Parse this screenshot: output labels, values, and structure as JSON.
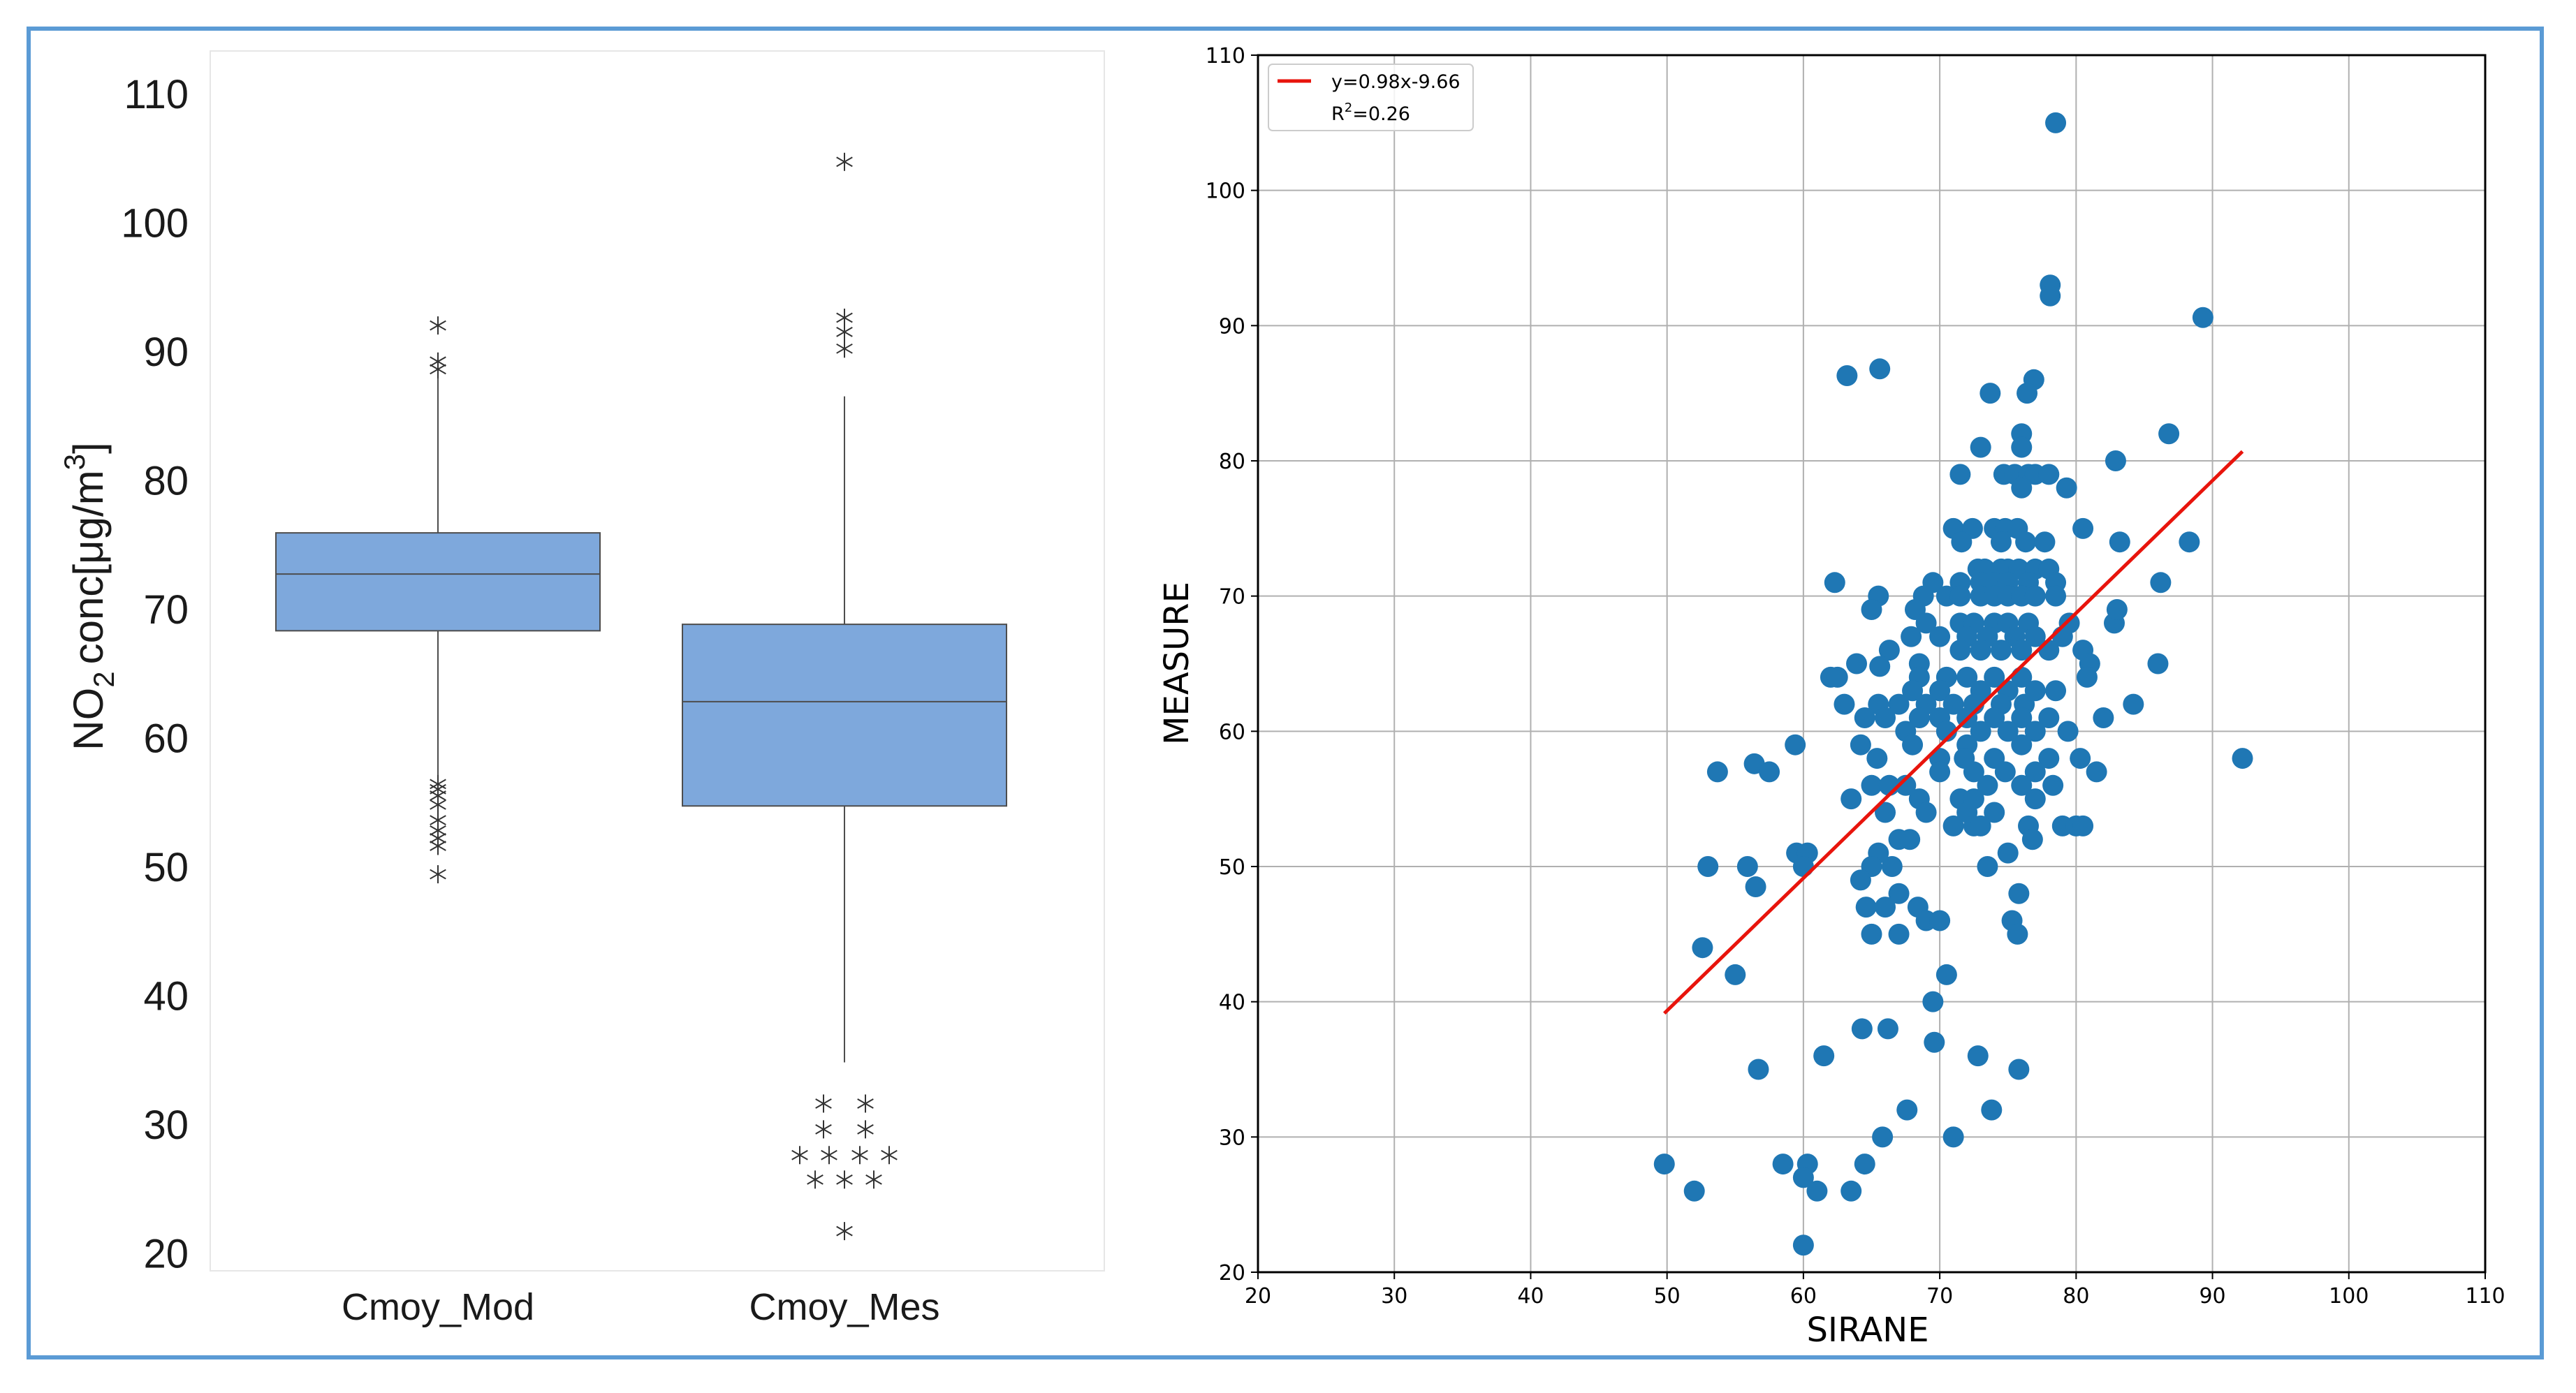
{
  "colors": {
    "frame": "#5b9bd5",
    "box_fill": "#7ea8dc",
    "box_edge": "#4d4d4d",
    "scatter": "#1f77b4",
    "fit_line": "#e8140c",
    "grid": "#b0b0b0"
  },
  "chart_data": [
    {
      "type": "box",
      "ylabel_main": "NO",
      "ylabel_sub": "2",
      "ylabel_rest": "conc[μg/m",
      "ylabel_sup": "3",
      "ylabel_close": "]",
      "ylim": [
        17,
        112
      ],
      "yticks": [
        "110",
        "100",
        "90",
        "80",
        "70",
        "60",
        "50",
        "40",
        "30",
        "20"
      ],
      "categories": [
        "Cmoy_Mod",
        "Cmoy_Mes"
      ],
      "boxes": [
        {
          "name": "Cmoy_Mod",
          "q1": 68.3,
          "median": 72.7,
          "q3": 75.9,
          "whisker_low": 57.0,
          "whisker_high": 88.3,
          "outliers": [
            92.0,
            89.2,
            88.6,
            56.4,
            56.0,
            55.5,
            54.8,
            53.6,
            52.8,
            52.2,
            51.6,
            49.4
          ]
        },
        {
          "name": "Cmoy_Mes",
          "q1": 54.7,
          "median": 62.8,
          "q3": 68.8,
          "whisker_low": 34.8,
          "whisker_high": 86.5,
          "outliers": [
            104.7,
            92.6,
            91.5,
            90.2,
            31.6,
            29.6,
            27.6,
            25.7,
            21.7
          ]
        }
      ]
    },
    {
      "type": "scatter",
      "xlabel": "SIRANE",
      "ylabel": "MEASURE",
      "xlim": [
        20,
        110
      ],
      "ylim": [
        20,
        110
      ],
      "xticks": [
        "20",
        "30",
        "40",
        "50",
        "60",
        "70",
        "80",
        "90",
        "100",
        "110"
      ],
      "yticks": [
        "20",
        "30",
        "40",
        "50",
        "60",
        "70",
        "80",
        "90",
        "100",
        "110"
      ],
      "grid": true,
      "legend": {
        "position": "top-left",
        "line1": "y=0.98x-9.66",
        "line2_prefix": "R",
        "line2_sup": "2",
        "line2_rest": "=0.26"
      },
      "fit": {
        "slope": 0.98,
        "intercept": -9.66,
        "x_range": [
          49.8,
          92.2
        ]
      },
      "points": [
        [
          78.5,
          105
        ],
        [
          78.1,
          93
        ],
        [
          78.1,
          92.2
        ],
        [
          89.3,
          90.6
        ],
        [
          63.2,
          86.3
        ],
        [
          65.6,
          86.8
        ],
        [
          76.9,
          86
        ],
        [
          76.4,
          85
        ],
        [
          73.7,
          85
        ],
        [
          86.8,
          82
        ],
        [
          76,
          82
        ],
        [
          73,
          81
        ],
        [
          76,
          81
        ],
        [
          82.9,
          80
        ],
        [
          71.5,
          79
        ],
        [
          74.7,
          79
        ],
        [
          75.5,
          79
        ],
        [
          76.5,
          79
        ],
        [
          77,
          79
        ],
        [
          78,
          79
        ],
        [
          76,
          78
        ],
        [
          79.3,
          78
        ],
        [
          71,
          75
        ],
        [
          72.4,
          75
        ],
        [
          74,
          75
        ],
        [
          74.8,
          75
        ],
        [
          75.7,
          75
        ],
        [
          80.5,
          75
        ],
        [
          71.6,
          74
        ],
        [
          74.5,
          74
        ],
        [
          76.3,
          74
        ],
        [
          77.7,
          74
        ],
        [
          83.2,
          74
        ],
        [
          88.3,
          74
        ],
        [
          72.8,
          72
        ],
        [
          73.3,
          72
        ],
        [
          74.5,
          72
        ],
        [
          75,
          72
        ],
        [
          75.8,
          72
        ],
        [
          77,
          72
        ],
        [
          78,
          72
        ],
        [
          71.5,
          71
        ],
        [
          73,
          71
        ],
        [
          74,
          71
        ],
        [
          75,
          71
        ],
        [
          76.5,
          71
        ],
        [
          78.5,
          71
        ],
        [
          62.3,
          71
        ],
        [
          69.5,
          71
        ],
        [
          86.2,
          71
        ],
        [
          65.5,
          70
        ],
        [
          68.8,
          70
        ],
        [
          70.5,
          70
        ],
        [
          71.5,
          70
        ],
        [
          73,
          70
        ],
        [
          74,
          70
        ],
        [
          75,
          70
        ],
        [
          76,
          70
        ],
        [
          77,
          70
        ],
        [
          78.5,
          70
        ],
        [
          65,
          69
        ],
        [
          68.2,
          69
        ],
        [
          69,
          68
        ],
        [
          71.5,
          68
        ],
        [
          72.5,
          68
        ],
        [
          74,
          68
        ],
        [
          75,
          68
        ],
        [
          76.5,
          68
        ],
        [
          79.5,
          68
        ],
        [
          82.8,
          68
        ],
        [
          83,
          69
        ],
        [
          67.9,
          67
        ],
        [
          70,
          67
        ],
        [
          72,
          67
        ],
        [
          73.5,
          67
        ],
        [
          75.5,
          67
        ],
        [
          77,
          67
        ],
        [
          79,
          67
        ],
        [
          66.3,
          66
        ],
        [
          68.5,
          65
        ],
        [
          71.5,
          66
        ],
        [
          73,
          66
        ],
        [
          74.5,
          66
        ],
        [
          76,
          66
        ],
        [
          78,
          66
        ],
        [
          80.5,
          66
        ],
        [
          81,
          65
        ],
        [
          86,
          65
        ],
        [
          63.9,
          65
        ],
        [
          65.6,
          64.8
        ],
        [
          62,
          64
        ],
        [
          62.5,
          64
        ],
        [
          68.5,
          64
        ],
        [
          70.5,
          64
        ],
        [
          72,
          64
        ],
        [
          74,
          64
        ],
        [
          76,
          64
        ],
        [
          80.8,
          64
        ],
        [
          68,
          63
        ],
        [
          70,
          63
        ],
        [
          73,
          63
        ],
        [
          75,
          63
        ],
        [
          77,
          63
        ],
        [
          78.5,
          63
        ],
        [
          63,
          62
        ],
        [
          65.5,
          62
        ],
        [
          67,
          62
        ],
        [
          69,
          62
        ],
        [
          71,
          62
        ],
        [
          72.5,
          62
        ],
        [
          74.5,
          62
        ],
        [
          76.2,
          62
        ],
        [
          84.2,
          62
        ],
        [
          64.5,
          61
        ],
        [
          66,
          61
        ],
        [
          68.5,
          61
        ],
        [
          70,
          61
        ],
        [
          72,
          61
        ],
        [
          74,
          61
        ],
        [
          76,
          61
        ],
        [
          78,
          61
        ],
        [
          82,
          61
        ],
        [
          79.4,
          60
        ],
        [
          67.5,
          60
        ],
        [
          70.5,
          60
        ],
        [
          73,
          60
        ],
        [
          75,
          60
        ],
        [
          77,
          60
        ],
        [
          59.4,
          59
        ],
        [
          64.2,
          59
        ],
        [
          68,
          59
        ],
        [
          72,
          59
        ],
        [
          76,
          59
        ],
        [
          80.3,
          58
        ],
        [
          92.2,
          58
        ],
        [
          65.4,
          58
        ],
        [
          70,
          58
        ],
        [
          71.8,
          58
        ],
        [
          74,
          58
        ],
        [
          78,
          58
        ],
        [
          56.4,
          57.6
        ],
        [
          57.5,
          57
        ],
        [
          53.7,
          57
        ],
        [
          65,
          56
        ],
        [
          66.3,
          56
        ],
        [
          67.5,
          56
        ],
        [
          70,
          57
        ],
        [
          72.5,
          57
        ],
        [
          74.8,
          57
        ],
        [
          77,
          57
        ],
        [
          81.5,
          57
        ],
        [
          73.5,
          56
        ],
        [
          76,
          56
        ],
        [
          78.3,
          56
        ],
        [
          63.5,
          55
        ],
        [
          68.5,
          55
        ],
        [
          71.5,
          55
        ],
        [
          72.5,
          55
        ],
        [
          74,
          54
        ],
        [
          77,
          55
        ],
        [
          66,
          54
        ],
        [
          69,
          54
        ],
        [
          72,
          54
        ],
        [
          72.5,
          53
        ],
        [
          71,
          53
        ],
        [
          73,
          53
        ],
        [
          76.5,
          53
        ],
        [
          79,
          53
        ],
        [
          80,
          53
        ],
        [
          80.5,
          53
        ],
        [
          67,
          52
        ],
        [
          67.8,
          52
        ],
        [
          75,
          51
        ],
        [
          76.8,
          52
        ],
        [
          59.5,
          51
        ],
        [
          60.3,
          51
        ],
        [
          65.5,
          51
        ],
        [
          53,
          50
        ],
        [
          55.9,
          50
        ],
        [
          60,
          50
        ],
        [
          65,
          50
        ],
        [
          66.5,
          50
        ],
        [
          73.5,
          50
        ],
        [
          56.5,
          48.5
        ],
        [
          64.2,
          49
        ],
        [
          67,
          48
        ],
        [
          75.8,
          48
        ],
        [
          64.6,
          47
        ],
        [
          66,
          47
        ],
        [
          68.4,
          47
        ],
        [
          69,
          46
        ],
        [
          70,
          46
        ],
        [
          75.3,
          46
        ],
        [
          65,
          45
        ],
        [
          67,
          45
        ],
        [
          75.7,
          45
        ],
        [
          52.6,
          44
        ],
        [
          55,
          42
        ],
        [
          70.5,
          42
        ],
        [
          69.5,
          40
        ],
        [
          64.3,
          38
        ],
        [
          66.2,
          38
        ],
        [
          69.6,
          37
        ],
        [
          61.5,
          36
        ],
        [
          72.8,
          36
        ],
        [
          56.7,
          35
        ],
        [
          75.8,
          35
        ],
        [
          67.6,
          32
        ],
        [
          73.8,
          32
        ],
        [
          65.8,
          30
        ],
        [
          71,
          30
        ],
        [
          49.8,
          28
        ],
        [
          58.5,
          28
        ],
        [
          60.3,
          28
        ],
        [
          64.5,
          28
        ],
        [
          52,
          26
        ],
        [
          60,
          27
        ],
        [
          61,
          26
        ],
        [
          63.5,
          26
        ],
        [
          60,
          22
        ]
      ]
    }
  ]
}
